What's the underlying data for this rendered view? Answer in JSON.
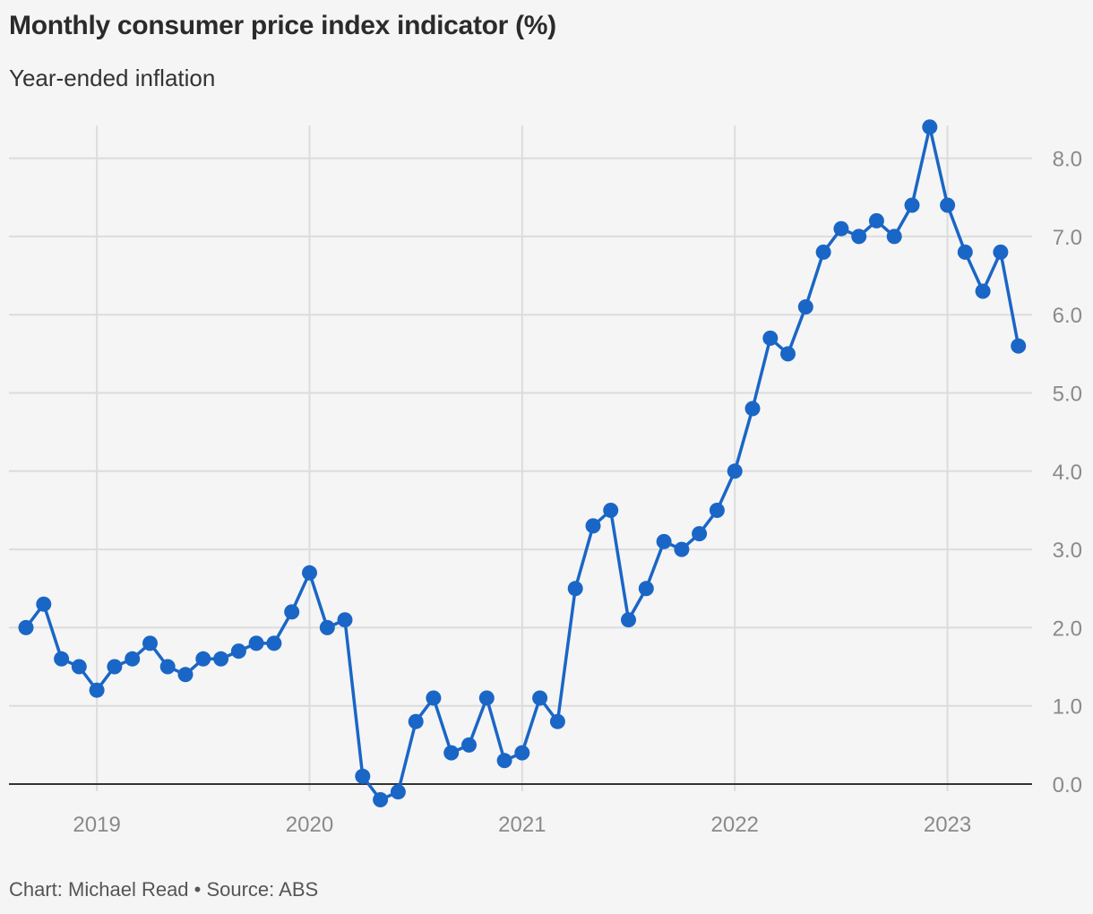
{
  "title": "Monthly consumer price index indicator (%)",
  "subtitle": "Year-ended inflation",
  "footer": "Chart: Michael Read • Source: ABS",
  "colors": {
    "line": "#1a66c6",
    "grid": "#dcdcdc",
    "zero": "#333333"
  },
  "chart_data": {
    "type": "line",
    "title": "Monthly consumer price index indicator (%)",
    "subtitle": "Year-ended inflation",
    "xlabel": "",
    "ylabel": "",
    "x_start": "2018-09",
    "x_ticks": [
      "2019",
      "2020",
      "2021",
      "2022",
      "2023"
    ],
    "y_ticks": [
      0.0,
      1.0,
      2.0,
      3.0,
      4.0,
      5.0,
      6.0,
      7.0,
      8.0
    ],
    "ylim": [
      -0.3,
      8.5
    ],
    "grid": true,
    "y_axis_position": "right",
    "series": [
      {
        "values": [
          2.0,
          2.3,
          1.6,
          1.5,
          1.2,
          1.5,
          1.6,
          1.8,
          1.5,
          1.4,
          1.6,
          1.6,
          1.7,
          1.8,
          1.8,
          2.2,
          2.7,
          2.0,
          2.1,
          0.1,
          -0.2,
          -0.1,
          0.8,
          1.1,
          0.4,
          0.5,
          1.1,
          0.3,
          0.4,
          1.1,
          0.8,
          2.5,
          3.3,
          3.5,
          2.1,
          2.5,
          3.1,
          3.0,
          3.2,
          3.5,
          4.0,
          4.8,
          5.7,
          5.5,
          6.1,
          6.8,
          7.1,
          7.0,
          7.2,
          7.0,
          7.4,
          8.4,
          7.4,
          6.8,
          6.3,
          6.8,
          5.6
        ]
      }
    ]
  }
}
